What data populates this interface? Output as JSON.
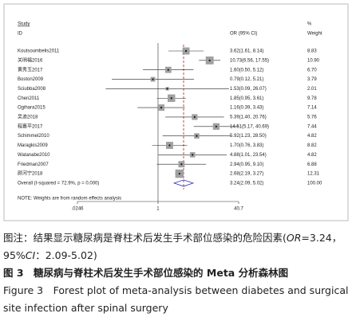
{
  "chart_data": {
    "type": "forest",
    "header": {
      "study": "Study",
      "id": "ID",
      "ci": "OR (95% CI)",
      "pct": "%",
      "weight": "Weight"
    },
    "studies": [
      {
        "name": "Koutsoumbelis2011",
        "or": 3.62,
        "lower": 1.61,
        "upper": 8.14,
        "label": "3.62(1.61,  8.14)",
        "weight": 8.83,
        "weight_label": "8.83"
      },
      {
        "name": "关明福2016",
        "or": 10.73,
        "lower": 6.56,
        "upper": 17.55,
        "label": "10.73(6.56,  17.55)",
        "weight": 10.9,
        "weight_label": "10.90"
      },
      {
        "name": "黄秀玉2017",
        "or": 1.6,
        "lower": 0.5,
        "upper": 5.12,
        "label": "1.60(0.50,  5.12)",
        "weight": 6.7,
        "weight_label": "6.70"
      },
      {
        "name": "Boston2009",
        "or": 0.79,
        "lower": 0.12,
        "upper": 5.21,
        "label": "0.79(0.12,  5.21)",
        "weight": 3.79,
        "weight_label": "3.79"
      },
      {
        "name": "Sciubba2008",
        "or": 1.53,
        "lower": 0.09,
        "upper": 26.07,
        "label": "1.53(0.09,  26.07)",
        "weight": 2.01,
        "weight_label": "2.01"
      },
      {
        "name": "Chen2011",
        "or": 1.85,
        "lower": 0.95,
        "upper": 3.61,
        "label": "1.85(0.95,  3.61)",
        "weight": 9.78,
        "weight_label": "9.78"
      },
      {
        "name": "Ogihara2015",
        "or": 1.16,
        "lower": 0.39,
        "upper": 3.43,
        "label": "1.16(0.39,  3.43)",
        "weight": 7.14,
        "weight_label": "7.14"
      },
      {
        "name": "吴迪2018",
        "or": 5.39,
        "lower": 1.4,
        "upper": 20.76,
        "label": "5.39(1.40,  20.76)",
        "weight": 5.76,
        "weight_label": "5.76"
      },
      {
        "name": "程嘉平2017",
        "or": 14.51,
        "lower": 5.17,
        "upper": 40.69,
        "label": "14.51(5.17,  40.69)",
        "weight": 7.44,
        "weight_label": "7.44"
      },
      {
        "name": "Schimmel2010",
        "or": 5.92,
        "lower": 1.23,
        "upper": 28.5,
        "label": "5.92(1.23,  28.50)",
        "weight": 4.82,
        "weight_label": "4.82"
      },
      {
        "name": "Maragkis2009",
        "or": 1.7,
        "lower": 0.76,
        "upper": 3.83,
        "label": "1.70(0.76,  3.83)",
        "weight": 8.82,
        "weight_label": "8.82"
      },
      {
        "name": "Watanabe2010",
        "or": 4.88,
        "lower": 1.01,
        "upper": 23.54,
        "label": "4.88(1.01,  23.54)",
        "weight": 4.82,
        "weight_label": "4.82"
      },
      {
        "name": "Friedman2007",
        "or": 2.94,
        "lower": 0.95,
        "upper": 9.1,
        "label": "2.94(0.95,  9.10)",
        "weight": 6.88,
        "weight_label": "6.88"
      },
      {
        "name": "颜河宁2018",
        "or": 2.68,
        "lower": 2.19,
        "upper": 3.27,
        "label": "2.68(2.19,  3.27)",
        "weight": 12.31,
        "weight_label": "12.31"
      }
    ],
    "overall": {
      "name": "Overall  (I-squared = 72.9%, p = 0.000)",
      "or": 3.24,
      "lower": 2.09,
      "upper": 5.02,
      "label": "3.24(2.09,  5.02)",
      "weight": 100,
      "weight_label": "100.00"
    },
    "note": "NOTE: Weights are from random effects analysis",
    "log_scale": true,
    "xlim": [
      0.0246,
      40.7
    ],
    "xticks": [
      {
        "value": 0.0246,
        "label": ".0246"
      },
      1,
      40.7
    ],
    "null_value": 1,
    "box_color": "#a0a0a0",
    "overall_color": "#3030c0",
    "dash_color": "#b02020"
  },
  "caption": {
    "note_parts": [
      "图注：结果显示糖尿病是脊柱术后发生手术部位感染的危险因素(",
      "OR",
      "=3.24，95%",
      "CI",
      "：2.09-5.02)"
    ],
    "cn": "图 3　糖尿病与脊柱术后发生手术部位感染的 Meta 分析森林图",
    "en": "Figure 3　Forest plot of meta-analysis between diabetes and surgical site infection after spinal surgery"
  }
}
